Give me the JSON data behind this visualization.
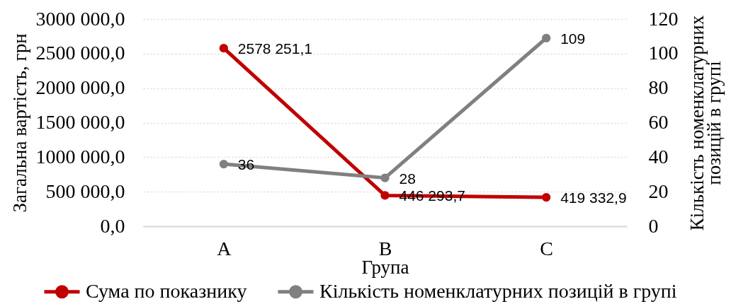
{
  "chart_data": {
    "type": "line",
    "categories": [
      "A",
      "B",
      "C"
    ],
    "xlabel": "Група",
    "ylabel": "Загальна вартість, грн",
    "y2label": "Кількість номенклатурних позицій в групі",
    "series": [
      {
        "name": "Сума по показнику",
        "color": "#c00000",
        "values": [
          2578251.1,
          446293.7,
          419332.9
        ],
        "value_labels": [
          "2578 251,1",
          "446 293,7",
          "419 332,9"
        ]
      },
      {
        "name": "Кількість номенклатурних позицій в групі",
        "color": "#808080",
        "axis": "y2",
        "values": [
          36,
          28,
          109
        ],
        "value_labels": [
          "36",
          "28",
          "109"
        ]
      }
    ],
    "ylim": [
      0,
      3000000
    ],
    "yticks": [
      {
        "value": 0,
        "label": "0,0"
      },
      {
        "value": 500000,
        "label": "500 000,0"
      },
      {
        "value": 1000000,
        "label": "1000 000,0"
      },
      {
        "value": 1500000,
        "label": "1500 000,0"
      },
      {
        "value": 2000000,
        "label": "2000 000,0"
      },
      {
        "value": 2500000,
        "label": "2500 000,0"
      },
      {
        "value": 3000000,
        "label": "3000 000,0"
      }
    ],
    "y2lim": [
      0,
      120
    ],
    "y2ticks": [
      0,
      20,
      40,
      60,
      80,
      100,
      120
    ],
    "grid": "y",
    "legend": "bottom",
    "marker": "circle",
    "line_style": "solid"
  }
}
